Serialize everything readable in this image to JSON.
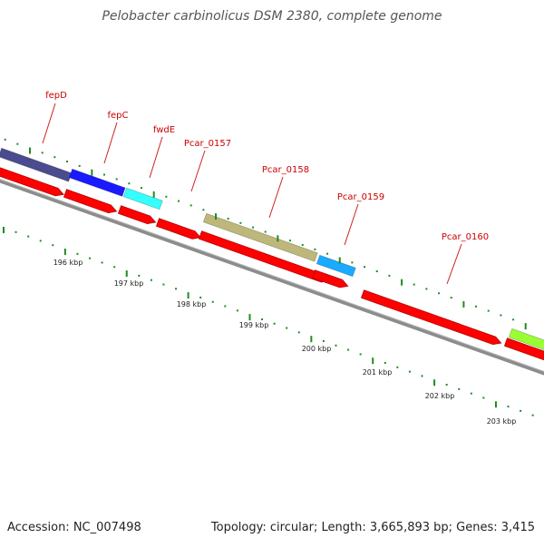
{
  "title": "Pelobacter carbinolicus DSM 2380, complete genome",
  "footer": {
    "accession": "Accession: NC_007498",
    "summary": "Topology: circular; Length: 3,665,893 bp; Genes: 3,415"
  },
  "colors": {
    "cds": "#ff0000",
    "backbone": "#8c8c8c",
    "tick": "#1e8c1e",
    "label": "#cc0000",
    "fepD": "#4b4b8f",
    "fepC": "#1a1aff",
    "fwdE": "#33ffff",
    "Pcar_0158": "#bdb87a",
    "Pcar_0159": "#1aaaff",
    "next_feature": "#99ff33"
  },
  "scale_labels": [
    "196 kbp",
    "197 kbp",
    "198 kbp",
    "199 kbp",
    "200 kbp",
    "201 kbp",
    "202 kbp",
    "203 kbp"
  ],
  "gene_labels": [
    "fepD",
    "fepC",
    "fwdE",
    "Pcar_0157",
    "Pcar_0158",
    "Pcar_0159",
    "Pcar_0160"
  ]
}
